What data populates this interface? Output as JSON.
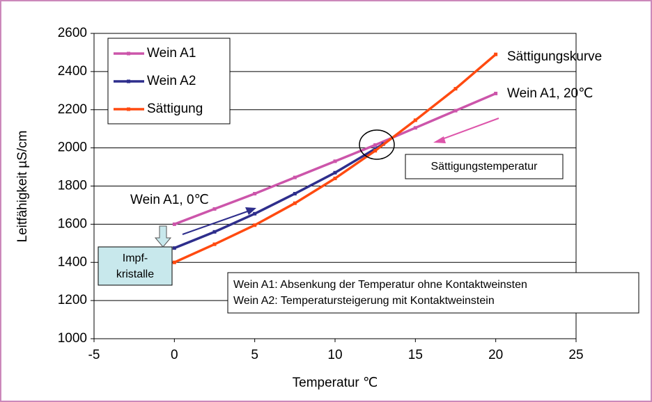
{
  "chart_data": {
    "type": "line",
    "xlabel": "Temperatur ℃",
    "ylabel": "Leitfähigkeit µS/cm",
    "xlim": [
      -5,
      25
    ],
    "xticks": [
      -5,
      0,
      5,
      10,
      15,
      20,
      25
    ],
    "ylim": [
      1000,
      2600
    ],
    "yticks": [
      1000,
      1200,
      1400,
      1600,
      1800,
      2000,
      2200,
      2400,
      2600
    ],
    "grid": true,
    "legend": "upper left",
    "series": [
      {
        "name": "Wein A1",
        "color": "#cc55aa",
        "x": [
          0,
          2.5,
          5,
          7.5,
          10,
          12.5,
          15,
          17.5,
          20
        ],
        "values": [
          1600,
          1680,
          1760,
          1845,
          1930,
          2015,
          2105,
          2195,
          2285
        ]
      },
      {
        "name": "Wein A2",
        "color": "#2e2e8c",
        "x": [
          0,
          2.5,
          5,
          7.5,
          10,
          12.5,
          13
        ],
        "values": [
          1475,
          1560,
          1655,
          1760,
          1870,
          1995,
          2020
        ]
      },
      {
        "name": "Sättigung",
        "color": "#ff4a10",
        "x": [
          0,
          2.5,
          5,
          7.5,
          10,
          12.5,
          15,
          17.5,
          20
        ],
        "values": [
          1400,
          1495,
          1595,
          1710,
          1840,
          1985,
          2145,
          2310,
          2490
        ]
      }
    ],
    "annotations": [
      "Sättigungskurve",
      "Wein A1, 20℃",
      "Sättigungstemperatur",
      "Wein A1, 0℃",
      "Impf-",
      "kristalle",
      "Wein A1: Absenkung der Temperatur ohne Kontaktweinsten",
      "Wein A2: Temperatursteigerung mit Kontaktweinstein"
    ]
  }
}
